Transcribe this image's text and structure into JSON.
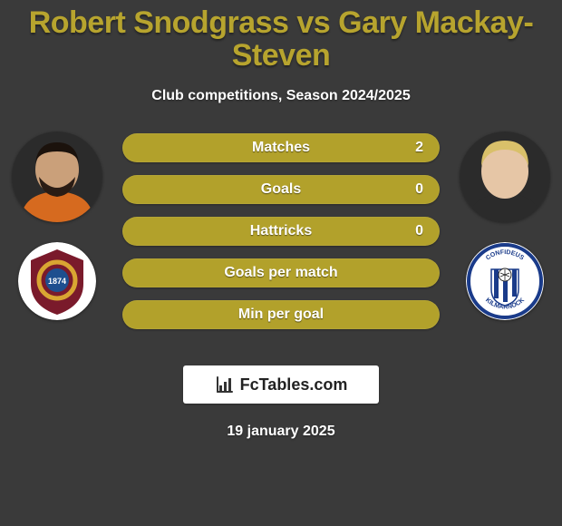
{
  "background_color": "#3a3a3a",
  "title": "Robert Snodgrass vs Gary Mackay-Steven",
  "title_color": "#b7a42e",
  "title_fontsize": 34,
  "subtitle": "Club competitions, Season 2024/2025",
  "subtitle_color": "#ffffff",
  "player_left": {
    "avatar_bg": "#2b2b2b",
    "skin": "#caa07a",
    "beard": "#2a1c14",
    "hair": "#1b120c",
    "shirt": "#d66a1f"
  },
  "player_right": {
    "avatar_bg": "#2b2b2b",
    "skin": "#e6c6a6",
    "hair": "#d9c06a",
    "shirt": "#2b2b2b"
  },
  "club_left": {
    "bg": "#ffffff",
    "primary": "#7a1a2b",
    "secondary": "#d9a532",
    "center": "#1e4f8f",
    "year": "1874"
  },
  "club_right": {
    "bg": "#ffffff",
    "ring": "#1a3b8a",
    "stripe1": "#1a3b8a",
    "stripe2": "#ffffff",
    "top_text": "CONFIDEUS",
    "bottom_text": "KILMARNOCK"
  },
  "bars": [
    {
      "label": "Matches",
      "left": null,
      "right": "2",
      "left_fill": "#b2a12b",
      "right_fill": "#b2a12b",
      "left_pct": 0,
      "right_pct": 100
    },
    {
      "label": "Goals",
      "left": null,
      "right": "0",
      "left_fill": "#b2a12b",
      "right_fill": "#b2a12b",
      "left_pct": 0,
      "right_pct": 100
    },
    {
      "label": "Hattricks",
      "left": null,
      "right": "0",
      "left_fill": "#b2a12b",
      "right_fill": "#b2a12b",
      "left_pct": 0,
      "right_pct": 100
    },
    {
      "label": "Goals per match",
      "left": null,
      "right": null,
      "left_fill": "#b2a12b",
      "right_fill": "#b2a12b",
      "left_pct": 0,
      "right_pct": 100
    },
    {
      "label": "Min per goal",
      "left": null,
      "right": null,
      "left_fill": "#b2a12b",
      "right_fill": "#b2a12b",
      "left_pct": 0,
      "right_pct": 100
    }
  ],
  "bar_style": {
    "height": 32,
    "radius": 18,
    "track_color": "#6a6023",
    "label_fontsize": 16
  },
  "brand": {
    "text": "FcTables.com",
    "icon_color": "#333333",
    "text_color": "#222222",
    "bg": "#ffffff"
  },
  "footer_date": "19 january 2025"
}
